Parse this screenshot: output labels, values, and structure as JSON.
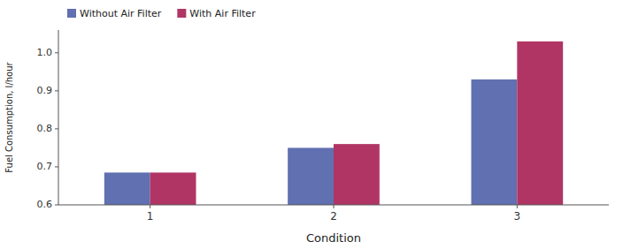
{
  "chart_data": {
    "type": "bar",
    "xlabel": "Condition",
    "ylabel": "Fuel Consumption, l/hour",
    "categories": [
      "1",
      "2",
      "3"
    ],
    "series": [
      {
        "name": "Without Air Filter",
        "color": "#6070B0",
        "values": [
          0.685,
          0.75,
          0.93
        ]
      },
      {
        "name": "With Air Filter",
        "color": "#B03565",
        "values": [
          0.685,
          0.76,
          1.03
        ]
      }
    ],
    "ylim": [
      0.6,
      1.06
    ],
    "yticks": [
      0.6,
      0.7,
      0.8,
      0.9,
      {
        "value": 1.0,
        "label": "1.0"
      }
    ],
    "grid": false,
    "legend": "upper left"
  }
}
